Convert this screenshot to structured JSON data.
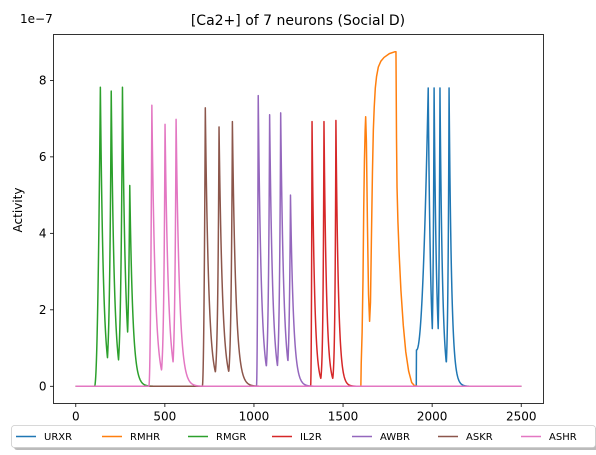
{
  "chart_data": {
    "type": "line",
    "title": "[Ca2+] of 7 neurons (Social D)",
    "xlabel": "",
    "ylabel": "Activity",
    "offset_label": "1e−7",
    "xlim": [
      -125,
      2625
    ],
    "ylim": [
      -0.45,
      9.2
    ],
    "x_ticks": [
      0,
      500,
      1000,
      1500,
      2000,
      2500
    ],
    "y_ticks": [
      0,
      2,
      4,
      6,
      8
    ],
    "grid": false,
    "legend_position": "bottom-outside",
    "series": [
      {
        "name": "URXR",
        "color": "#1f77b4",
        "peaks": [
          {
            "t": 1978,
            "a": 7.8
          },
          {
            "t": 2011,
            "a": 7.8
          },
          {
            "t": 2044,
            "a": 7.8
          },
          {
            "t": 2095,
            "a": 7.8
          }
        ],
        "onset": 1912,
        "onset_level": 0.95,
        "rise": 6,
        "decay": 14
      },
      {
        "name": "RMHR",
        "color": "#ff7f0e",
        "points": [
          [
            0,
            0
          ],
          [
            1600,
            0
          ],
          [
            1602,
            0.6
          ],
          [
            1607,
            1.4
          ],
          [
            1612,
            2.8
          ],
          [
            1616,
            4.6
          ],
          [
            1620,
            5.9
          ],
          [
            1624,
            6.7
          ],
          [
            1627,
            7.05
          ],
          [
            1631,
            6.4
          ],
          [
            1637,
            4.2
          ],
          [
            1643,
            2.4
          ],
          [
            1649,
            1.7
          ],
          [
            1654,
            2.2
          ],
          [
            1659,
            3.8
          ],
          [
            1665,
            5.6
          ],
          [
            1670,
            6.7
          ],
          [
            1675,
            7.3
          ],
          [
            1681,
            7.8
          ],
          [
            1688,
            8.1
          ],
          [
            1698,
            8.35
          ],
          [
            1712,
            8.5
          ],
          [
            1730,
            8.6
          ],
          [
            1760,
            8.7
          ],
          [
            1792,
            8.75
          ],
          [
            1797,
            8.75
          ],
          [
            1800,
            6.5
          ],
          [
            1803,
            5.2
          ],
          [
            1808,
            4.3
          ],
          [
            1815,
            3.45
          ],
          [
            1825,
            2.5
          ],
          [
            1838,
            1.6
          ],
          [
            1852,
            0.9
          ],
          [
            1868,
            0.4
          ],
          [
            1885,
            0.1
          ],
          [
            1900,
            0.02
          ],
          [
            1920,
            0
          ],
          [
            2500,
            0
          ]
        ]
      },
      {
        "name": "RMGR",
        "color": "#2ca02c",
        "peaks": [
          {
            "t": 138,
            "a": 7.82
          },
          {
            "t": 199,
            "a": 7.72
          },
          {
            "t": 262,
            "a": 7.82
          },
          {
            "t": 303,
            "a": 5.25
          }
        ],
        "onset": 105,
        "onset_level": 0,
        "rise": 9,
        "decay": 17
      },
      {
        "name": "IL2R",
        "color": "#d62728",
        "peaks": [
          {
            "t": 1326,
            "a": 6.92
          },
          {
            "t": 1393,
            "a": 6.92
          },
          {
            "t": 1460,
            "a": 6.95
          }
        ],
        "onset": 1318,
        "onset_level": 0,
        "rise": 5,
        "decay": 14
      },
      {
        "name": "AWBR",
        "color": "#9467bd",
        "peaks": [
          {
            "t": 1024,
            "a": 7.6
          },
          {
            "t": 1088,
            "a": 7.1
          },
          {
            "t": 1150,
            "a": 7.15
          },
          {
            "t": 1205,
            "a": 5.0
          }
        ],
        "onset": 1014,
        "onset_level": 0,
        "rise": 7,
        "decay": 17
      },
      {
        "name": "ASKR",
        "color": "#8c564b",
        "peaks": [
          {
            "t": 727,
            "a": 7.28
          },
          {
            "t": 804,
            "a": 6.78
          },
          {
            "t": 879,
            "a": 6.92
          }
        ],
        "onset": 710,
        "onset_level": 0,
        "rise": 7,
        "decay": 19
      },
      {
        "name": "ASHR",
        "color": "#e377c2",
        "peaks": [
          {
            "t": 427,
            "a": 7.35
          },
          {
            "t": 501,
            "a": 6.85
          },
          {
            "t": 563,
            "a": 6.98
          }
        ],
        "onset": 410,
        "onset_level": 0,
        "rise": 7,
        "decay": 19
      }
    ]
  }
}
